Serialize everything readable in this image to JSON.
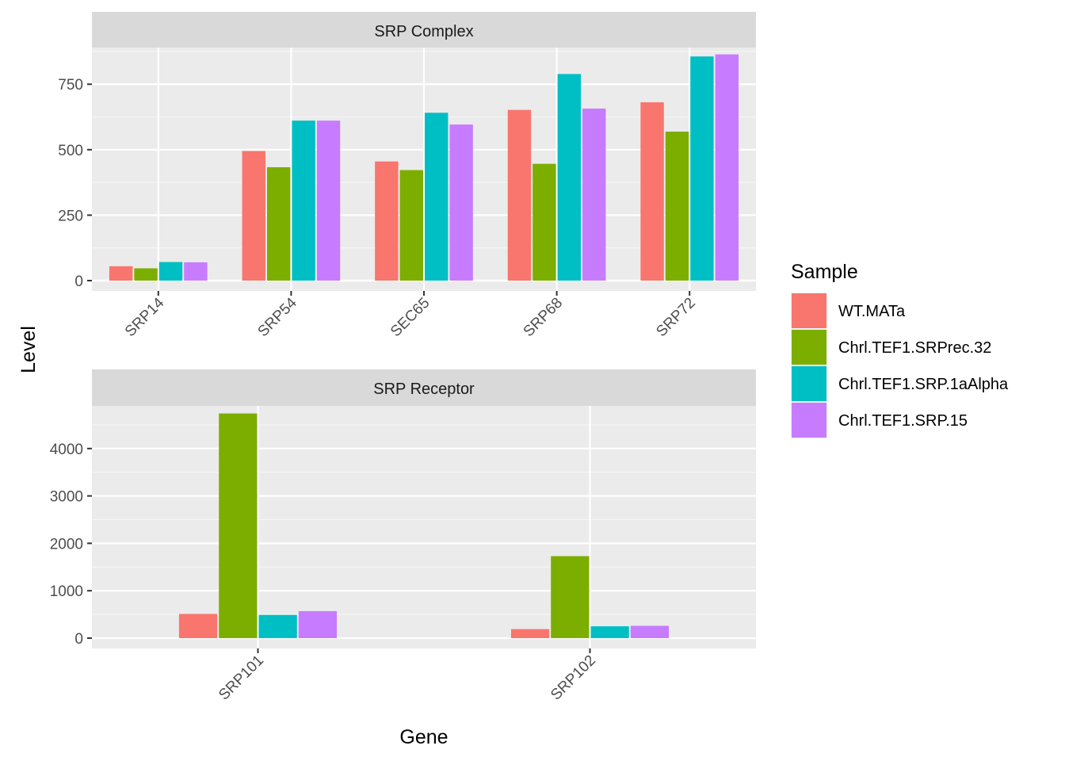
{
  "chart_data": {
    "type": "bar",
    "xlabel": "Gene",
    "ylabel": "Level",
    "legend": {
      "title": "Sample",
      "placement": "right",
      "entries": [
        {
          "name": "WT.MATa",
          "color": "#F8766D"
        },
        {
          "name": "Chrl.TEF1.SRPrec.32",
          "color": "#7CAE00"
        },
        {
          "name": "Chrl.TEF1.SRP.1aAlpha",
          "color": "#00BFC4"
        },
        {
          "name": "Chrl.TEF1.SRP.15",
          "color": "#C77CFF"
        }
      ]
    },
    "panels": [
      {
        "title": "SRP Complex",
        "categories": [
          "SRP14",
          "SRP54",
          "SEC65",
          "SRP68",
          "SRP72"
        ],
        "ylim": [
          0,
          890
        ],
        "yticks": [
          0,
          250,
          500,
          750
        ],
        "series": [
          {
            "name": "WT.MATa",
            "values": [
              55,
              495,
              455,
              652,
              681
            ]
          },
          {
            "name": "Chrl.TEF1.SRPrec.32",
            "values": [
              47,
              433,
              422,
              446,
              569
            ]
          },
          {
            "name": "Chrl.TEF1.SRP.1aAlpha",
            "values": [
              71,
              611,
              641,
              789,
              856
            ]
          },
          {
            "name": "Chrl.TEF1.SRP.15",
            "values": [
              70,
              611,
              596,
              657,
              864
            ]
          }
        ]
      },
      {
        "title": "SRP Receptor",
        "categories": [
          "SRP101",
          "SRP102"
        ],
        "ylim": [
          0,
          4900
        ],
        "yticks": [
          0,
          1000,
          2000,
          3000,
          4000
        ],
        "series": [
          {
            "name": "WT.MATa",
            "values": [
              510,
              190
            ]
          },
          {
            "name": "Chrl.TEF1.SRPrec.32",
            "values": [
              4740,
              1730
            ]
          },
          {
            "name": "Chrl.TEF1.SRP.1aAlpha",
            "values": [
              490,
              250
            ]
          },
          {
            "name": "Chrl.TEF1.SRP.15",
            "values": [
              570,
              260
            ]
          }
        ]
      }
    ]
  }
}
